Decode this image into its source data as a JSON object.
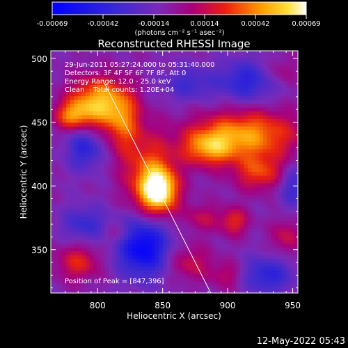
{
  "colorbar": {
    "ticks": [
      "-0.00069",
      "-0.00042",
      "-0.00014",
      "0.00014",
      "0.00042",
      "0.00069"
    ],
    "unit_label": "(photons cm⁻² s⁻¹ asec⁻²)",
    "range": [
      -0.00069,
      0.00069
    ]
  },
  "plot": {
    "title": "Reconstructed RHESSI Image",
    "xlabel": "Heliocentric X (arcsec)",
    "ylabel": "Heliocentric Y (arcsec)",
    "info_lines": [
      "29-Jun-2011 05:27:24.000 to 05:31:40.000",
      "Detectors: 3F 4F 5F 6F 7F 8F, Att 0",
      "Energy Range: 12.0 - 25.0 keV",
      "Clean    Total counts: 1.20E+04"
    ],
    "peak_label": "Position of Peak = [847,396]"
  },
  "footer": {
    "timestamp": "12-May-2022 05:43"
  },
  "chart_data": {
    "type": "heatmap",
    "title": "Reconstructed RHESSI Image",
    "xlabel": "Heliocentric X (arcsec)",
    "ylabel": "Heliocentric Y (arcsec)",
    "xlim": [
      764,
      954
    ],
    "ylim": [
      316,
      506
    ],
    "x_ticks": [
      800,
      850,
      900,
      950
    ],
    "y_ticks": [
      350,
      400,
      450,
      500
    ],
    "colorscale": "blue-purple-red-yellow-white",
    "value_range": [
      -0.00069,
      0.00069
    ],
    "peak_position": [
      847,
      396
    ],
    "limb_line": {
      "x": [
        804,
        887
      ],
      "y": [
        483,
        316
      ]
    },
    "blobs": [
      {
        "x": 847,
        "y": 396,
        "amp": 1.0,
        "sx": 10,
        "sy": 12
      },
      {
        "x": 840,
        "y": 410,
        "amp": 0.55,
        "sx": 14,
        "sy": 22
      },
      {
        "x": 800,
        "y": 465,
        "amp": 0.85,
        "sx": 15,
        "sy": 14
      },
      {
        "x": 780,
        "y": 455,
        "amp": 0.55,
        "sx": 10,
        "sy": 8
      },
      {
        "x": 820,
        "y": 450,
        "amp": 0.5,
        "sx": 10,
        "sy": 18
      },
      {
        "x": 915,
        "y": 440,
        "amp": 0.75,
        "sx": 28,
        "sy": 14
      },
      {
        "x": 885,
        "y": 430,
        "amp": 0.6,
        "sx": 14,
        "sy": 10
      },
      {
        "x": 925,
        "y": 410,
        "amp": 0.5,
        "sx": 14,
        "sy": 10
      },
      {
        "x": 905,
        "y": 372,
        "amp": 0.45,
        "sx": 8,
        "sy": 8
      },
      {
        "x": 880,
        "y": 375,
        "amp": 0.3,
        "sx": 10,
        "sy": 8
      },
      {
        "x": 870,
        "y": 340,
        "amp": 0.35,
        "sx": 12,
        "sy": 10
      },
      {
        "x": 785,
        "y": 340,
        "amp": 0.45,
        "sx": 12,
        "sy": 10
      },
      {
        "x": 815,
        "y": 362,
        "amp": 0.25,
        "sx": 8,
        "sy": 6
      },
      {
        "x": 900,
        "y": 330,
        "amp": 0.3,
        "sx": 10,
        "sy": 8
      },
      {
        "x": 945,
        "y": 360,
        "amp": 0.35,
        "sx": 8,
        "sy": 10
      },
      {
        "x": 940,
        "y": 490,
        "amp": 0.25,
        "sx": 10,
        "sy": 8
      },
      {
        "x": 835,
        "y": 352,
        "amp": -0.85,
        "sx": 14,
        "sy": 16
      },
      {
        "x": 915,
        "y": 482,
        "amp": -0.5,
        "sx": 16,
        "sy": 12
      },
      {
        "x": 790,
        "y": 430,
        "amp": -0.5,
        "sx": 10,
        "sy": 12
      },
      {
        "x": 790,
        "y": 370,
        "amp": -0.4,
        "sx": 12,
        "sy": 10
      },
      {
        "x": 930,
        "y": 330,
        "amp": -0.5,
        "sx": 14,
        "sy": 10
      },
      {
        "x": 870,
        "y": 480,
        "amp": -0.35,
        "sx": 14,
        "sy": 10
      },
      {
        "x": 950,
        "y": 400,
        "amp": -0.4,
        "sx": 8,
        "sy": 12
      }
    ]
  }
}
